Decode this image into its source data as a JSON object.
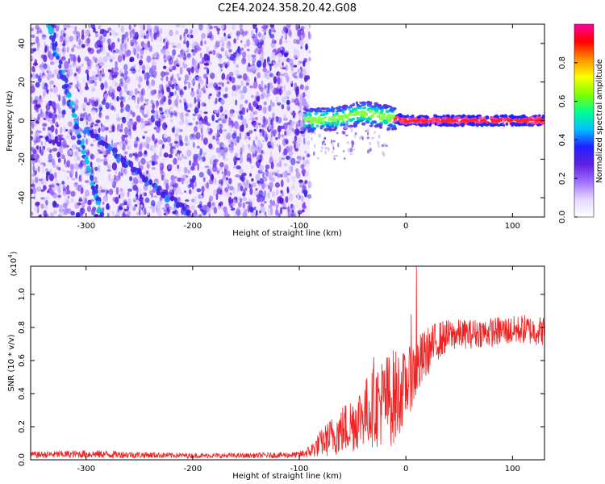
{
  "title": "C2E4.2024.358.20.42.G08",
  "chart_data": [
    {
      "type": "heatmap",
      "xlabel": "Height of straight line (km)",
      "ylabel": "Frequency (Hz)",
      "xlim": [
        -352,
        130
      ],
      "ylim": [
        -50,
        50
      ],
      "x_ticks": [
        -300,
        -200,
        -100,
        0,
        100
      ],
      "y_ticks": [
        -40,
        -20,
        0,
        20,
        40
      ],
      "colorbar": {
        "label": "Normalized spectral amplitude",
        "range": [
          0,
          1
        ],
        "ticks": [
          "0.0",
          "0.2",
          "0.4",
          "0.6",
          "0.8"
        ],
        "tick_values": [
          0.0,
          0.2,
          0.4,
          0.6,
          0.8
        ],
        "colors": [
          "#ffffff",
          "#e6d8ff",
          "#a070ff",
          "#6020e0",
          "#2020ff",
          "#00c0ff",
          "#00ff90",
          "#80ff00",
          "#ffff00",
          "#ff9000",
          "#ff0000",
          "#ff00a0"
        ]
      },
      "features": {
        "noise_region_x": [
          -352,
          -90
        ],
        "signal_x": [
          -95,
          130
        ],
        "signal_freq_center": [
          [
            -95,
            0
          ],
          [
            -80,
            0.5
          ],
          [
            -60,
            1.5
          ],
          [
            -40,
            4
          ],
          [
            -30,
            3
          ],
          [
            -20,
            2
          ],
          [
            -10,
            1
          ],
          [
            0,
            0
          ],
          [
            130,
            0
          ]
        ],
        "descending_tracks": [
          {
            "x": [
              -335,
              -285
            ],
            "y": [
              50,
              -50
            ]
          },
          {
            "x": [
              -300,
              -200
            ],
            "y": [
              -5,
              -50
            ]
          }
        ]
      }
    },
    {
      "type": "line",
      "xlabel": "Height of straight line (km)",
      "ylabel": "SNR (10 * v/v)",
      "multiplier": "(x10",
      "multiplier_exp": "4",
      "xlim": [
        -352,
        130
      ],
      "ylim": [
        0,
        1.17
      ],
      "x_ticks": [
        -300,
        -200,
        -100,
        0,
        100
      ],
      "y_ticks": [
        "0.0",
        "0.2",
        "0.4",
        "0.6",
        "0.8",
        "1.0"
      ],
      "y_tick_values": [
        0.0,
        0.2,
        0.4,
        0.6,
        0.8,
        1.0
      ],
      "series": [
        {
          "color": "#ee2222",
          "envelope": {
            "x": [
              -352,
              -300,
              -250,
              -200,
              -150,
              -100,
              -90,
              -80,
              -70,
              -60,
              -50,
              -40,
              -30,
              -20,
              -10,
              0,
              10,
              20,
              30,
              40,
              50,
              60,
              70,
              80,
              90,
              100,
              110,
              120,
              130
            ],
            "mean": [
              0.03,
              0.035,
              0.03,
              0.025,
              0.025,
              0.03,
              0.05,
              0.1,
              0.14,
              0.18,
              0.22,
              0.28,
              0.32,
              0.36,
              0.38,
              0.45,
              0.55,
              0.65,
              0.72,
              0.75,
              0.76,
              0.76,
              0.77,
              0.77,
              0.78,
              0.78,
              0.79,
              0.78,
              0.78
            ],
            "spread": [
              0.02,
              0.025,
              0.02,
              0.015,
              0.015,
              0.02,
              0.04,
              0.08,
              0.12,
              0.15,
              0.18,
              0.2,
              0.25,
              0.28,
              0.3,
              0.2,
              0.2,
              0.15,
              0.12,
              0.1,
              0.09,
              0.09,
              0.09,
              0.09,
              0.09,
              0.09,
              0.09,
              0.09,
              0.09
            ]
          },
          "spikes": [
            {
              "x": 10,
              "y": 1.17
            },
            {
              "x": -30,
              "y": 0.62
            },
            {
              "x": 5,
              "y": 0.88
            }
          ]
        }
      ]
    }
  ]
}
